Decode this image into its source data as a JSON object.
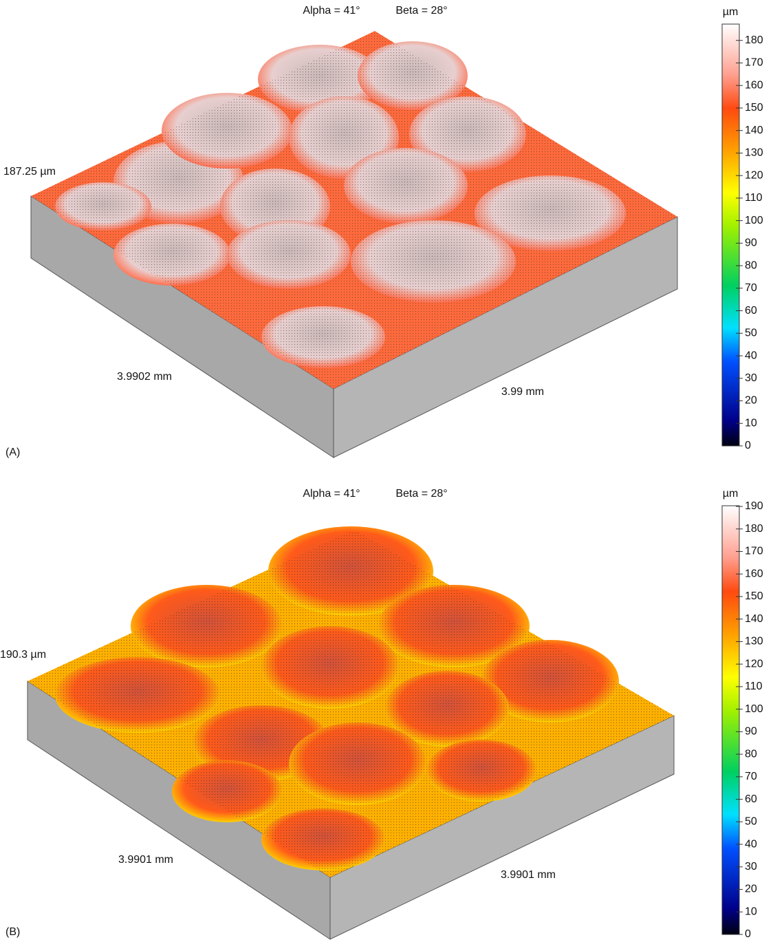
{
  "panels": [
    {
      "label": "(A)",
      "alpha": "Alpha = 41°",
      "beta": "Beta = 28°",
      "z_height": "187.25 µm",
      "x_length": "3.9902 mm",
      "y_length": "3.99 mm",
      "colorbar_unit": "µm",
      "colorbar_lim": [
        0,
        187.25
      ],
      "colorbar_ticks": [
        0,
        10,
        20,
        30,
        40,
        50,
        60,
        70,
        80,
        90,
        100,
        110,
        120,
        130,
        140,
        150,
        160,
        170,
        180
      ]
    },
    {
      "label": "(B)",
      "alpha": "Alpha = 41°",
      "beta": "Beta = 28°",
      "z_height": "190.3 µm",
      "x_length": "3.9901 mm",
      "y_length": "3.9901 mm",
      "colorbar_unit": "µm",
      "colorbar_lim": [
        0,
        190.3
      ],
      "colorbar_ticks": [
        0,
        10,
        20,
        30,
        40,
        50,
        60,
        70,
        80,
        90,
        100,
        110,
        120,
        130,
        140,
        150,
        160,
        170,
        180,
        190
      ]
    }
  ]
}
